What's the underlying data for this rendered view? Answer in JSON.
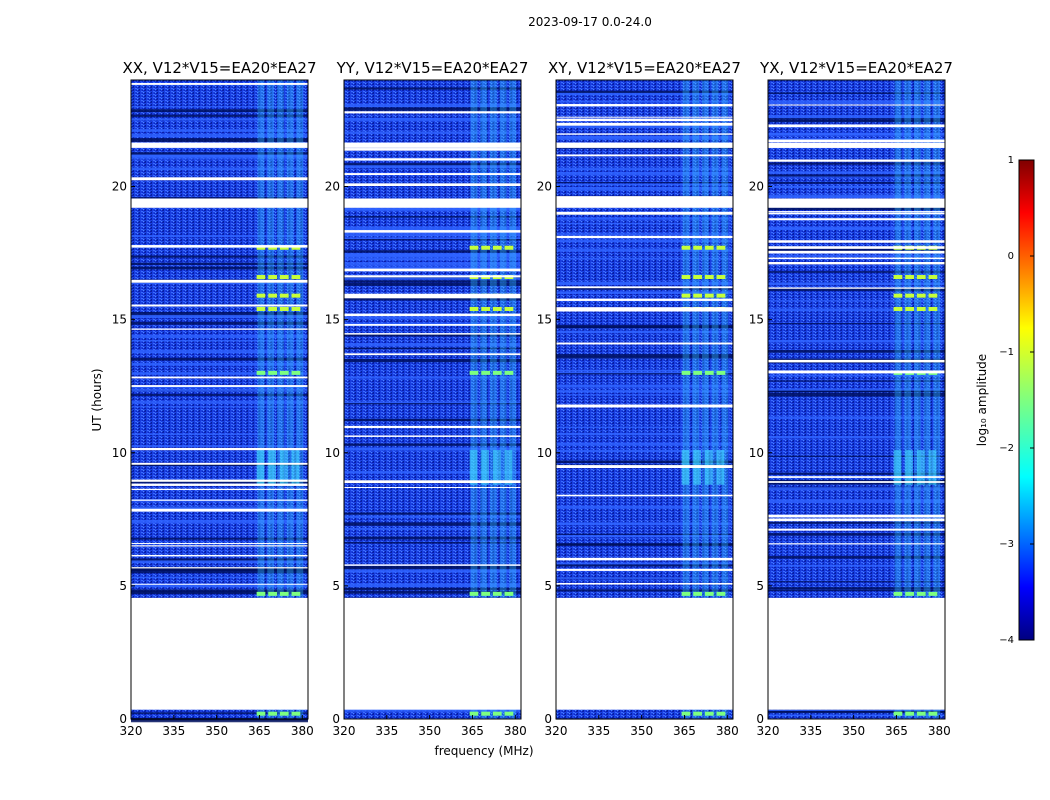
{
  "chart_data": {
    "type": "heatmap",
    "title": "2023-09-17 0.0-24.0",
    "xlabel": "frequency (MHz)",
    "ylabel": "UT (hours)",
    "xlim": [
      320,
      382
    ],
    "ylim": [
      0,
      24
    ],
    "xticks": [
      "320",
      "335",
      "350",
      "365",
      "380"
    ],
    "yticks": [
      "0",
      "5",
      "10",
      "15",
      "20"
    ],
    "panels": [
      {
        "title": "XX, V12*V15=EA20*EA27"
      },
      {
        "title": "YY, V12*V15=EA20*EA27"
      },
      {
        "title": "XY, V12*V15=EA20*EA27"
      },
      {
        "title": "YX, V12*V15=EA20*EA27"
      }
    ],
    "data_gaps_ut": [
      [
        0.35,
        4.55
      ],
      [
        19.2,
        19.55
      ],
      [
        21.45,
        21.65
      ]
    ],
    "rfi_band_mhz": [
      364,
      381
    ],
    "bright_rfi_ut": [
      0.2,
      4.7,
      13.0,
      15.4,
      15.9,
      16.6,
      17.7
    ],
    "colorbar": {
      "label": "log₁₀ amplitude",
      "ticks": [
        "1",
        "0",
        "−1",
        "−2",
        "−3",
        "−4"
      ],
      "range": [
        -4,
        1
      ]
    }
  }
}
